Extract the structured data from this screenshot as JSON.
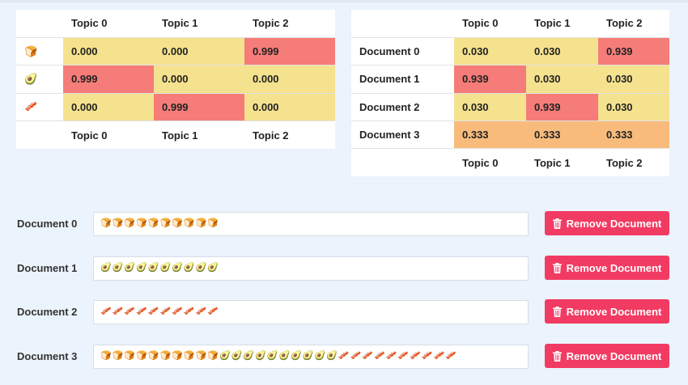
{
  "topic_word_table": {
    "headers": [
      "Topic 0",
      "Topic 1",
      "Topic 2"
    ],
    "rows": [
      {
        "word": "🍞",
        "icon": "bread-icon",
        "values": [
          "0.000",
          "0.000",
          "0.999"
        ]
      },
      {
        "word": "🥑",
        "icon": "avocado-icon",
        "values": [
          "0.999",
          "0.000",
          "0.000"
        ]
      },
      {
        "word": "🥓",
        "icon": "bacon-icon",
        "values": [
          "0.000",
          "0.999",
          "0.000"
        ]
      }
    ],
    "footers": [
      "Topic 0",
      "Topic 1",
      "Topic 2"
    ]
  },
  "doc_topic_table": {
    "headers": [
      "Topic 0",
      "Topic 1",
      "Topic 2"
    ],
    "rows": [
      {
        "label": "Document 0",
        "values": [
          "0.030",
          "0.030",
          "0.939"
        ]
      },
      {
        "label": "Document 1",
        "values": [
          "0.939",
          "0.030",
          "0.030"
        ]
      },
      {
        "label": "Document 2",
        "values": [
          "0.030",
          "0.939",
          "0.030"
        ]
      },
      {
        "label": "Document 3",
        "values": [
          "0.333",
          "0.333",
          "0.333"
        ]
      }
    ],
    "footers": [
      "Topic 0",
      "Topic 1",
      "Topic 2"
    ]
  },
  "documents": [
    {
      "label": "Document 0",
      "content": "🍞🍞🍞🍞🍞🍞🍞🍞🍞🍞",
      "button_label": "Remove Document"
    },
    {
      "label": "Document 1",
      "content": "🥑🥑🥑🥑🥑🥑🥑🥑🥑🥑",
      "button_label": "Remove Document"
    },
    {
      "label": "Document 2",
      "content": "🥓🥓🥓🥓🥓🥓🥓🥓🥓🥓",
      "button_label": "Remove Document"
    },
    {
      "label": "Document 3",
      "content": "🍞🍞🍞🍞🍞🍞🍞🍞🍞🍞🥑🥑🥑🥑🥑🥑🥑🥑🥑🥑🥓🥓🥓🥓🥓🥓🥓🥓🥓🥓",
      "button_label": "Remove Document"
    }
  ],
  "colors": {
    "low": "#f5e28e",
    "mid": "#f8bb7c",
    "high": "#f57c78",
    "button": "#f23b62",
    "background": "#ebf3fc"
  }
}
